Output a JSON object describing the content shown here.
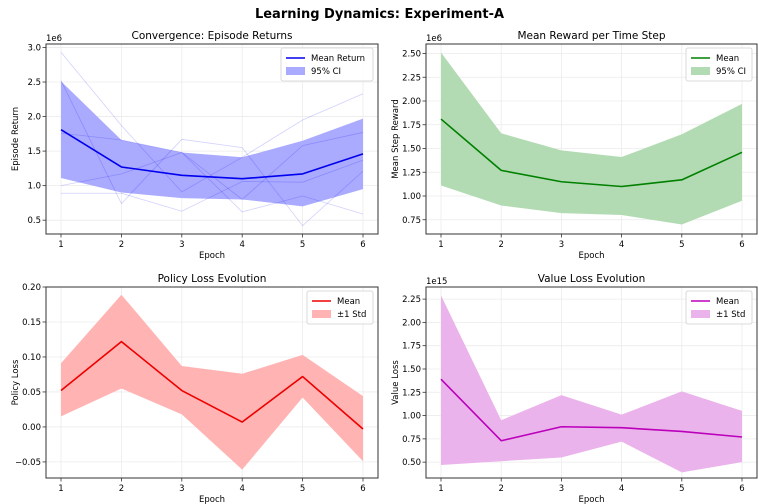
{
  "figure": {
    "title": "Learning Dynamics: Experiment-A"
  },
  "chart_data": [
    {
      "id": "returns",
      "type": "line",
      "title": "Convergence: Episode Returns",
      "xlabel": "Epoch",
      "ylabel": "Episode Return",
      "offset_label": "1e6",
      "x": [
        1,
        2,
        3,
        4,
        5,
        6
      ],
      "xticks": [
        "1",
        "2",
        "3",
        "4",
        "5",
        "6"
      ],
      "ylim": [
        0.3,
        3.05
      ],
      "yticks": [
        0.5,
        1.0,
        1.5,
        2.0,
        2.5,
        3.0
      ],
      "ytick_labels": [
        "0.5",
        "1.0",
        "1.5",
        "2.0",
        "2.5",
        "3.0"
      ],
      "grid": true,
      "legend": {
        "placement": "top-right",
        "entries": [
          {
            "label": "Mean Return",
            "kind": "line"
          },
          {
            "label": "95% CI",
            "kind": "band"
          }
        ]
      },
      "color": "#0000ee",
      "band_color": "#aaaaff",
      "mean": [
        1.81,
        1.27,
        1.15,
        1.1,
        1.17,
        1.46
      ],
      "band_upper": [
        2.51,
        1.66,
        1.48,
        1.41,
        1.65,
        1.97
      ],
      "band_lower": [
        1.11,
        0.9,
        0.82,
        0.8,
        0.7,
        0.95
      ],
      "runs": [
        [
          2.93,
          1.87,
          0.91,
          1.41,
          1.95,
          2.33
        ],
        [
          1.76,
          1.66,
          1.48,
          0.8,
          1.58,
          1.77
        ],
        [
          2.52,
          0.74,
          1.67,
          1.55,
          0.42,
          1.21
        ],
        [
          1.0,
          1.17,
          1.48,
          0.62,
          0.85,
          0.59
        ],
        [
          0.89,
          0.89,
          0.63,
          1.06,
          1.05,
          1.37
        ]
      ]
    },
    {
      "id": "step_reward",
      "type": "line",
      "title": "Mean Reward per Time Step",
      "xlabel": "Epoch",
      "ylabel": "Mean Step Reward",
      "offset_label": "1e6",
      "x": [
        1,
        2,
        3,
        4,
        5,
        6
      ],
      "xticks": [
        "1",
        "2",
        "3",
        "4",
        "5",
        "6"
      ],
      "ylim": [
        0.6,
        2.6
      ],
      "yticks": [
        0.75,
        1.0,
        1.25,
        1.5,
        1.75,
        2.0,
        2.25,
        2.5
      ],
      "ytick_labels": [
        "0.75",
        "1.00",
        "1.25",
        "1.50",
        "1.75",
        "2.00",
        "2.25",
        "2.50"
      ],
      "grid": true,
      "legend": {
        "placement": "top-right",
        "entries": [
          {
            "label": "Mean",
            "kind": "line"
          },
          {
            "label": "95% CI",
            "kind": "band"
          }
        ]
      },
      "color": "#008000",
      "band_color": "#b3dbb3",
      "mean": [
        1.81,
        1.27,
        1.15,
        1.1,
        1.17,
        1.46
      ],
      "band_upper": [
        2.51,
        1.66,
        1.48,
        1.41,
        1.65,
        1.97
      ],
      "band_lower": [
        1.11,
        0.9,
        0.82,
        0.8,
        0.7,
        0.95
      ],
      "runs": []
    },
    {
      "id": "policy_loss",
      "type": "line",
      "title": "Policy Loss Evolution",
      "xlabel": "Epoch",
      "ylabel": "Policy Loss",
      "offset_label": "",
      "x": [
        1,
        2,
        3,
        4,
        5,
        6
      ],
      "xticks": [
        "1",
        "2",
        "3",
        "4",
        "5",
        "6"
      ],
      "ylim": [
        -0.073,
        0.2
      ],
      "yticks": [
        -0.05,
        0.0,
        0.05,
        0.1,
        0.15,
        0.2
      ],
      "ytick_labels": [
        "−0.05",
        "0.00",
        "0.05",
        "0.10",
        "0.15",
        "0.20"
      ],
      "grid": true,
      "legend": {
        "placement": "top-right",
        "entries": [
          {
            "label": "Mean",
            "kind": "line"
          },
          {
            "label": "±1 Std",
            "kind": "band"
          }
        ]
      },
      "color": "#ee0000",
      "band_color": "#ffb3b3",
      "mean": [
        0.052,
        0.122,
        0.052,
        0.007,
        0.072,
        -0.003
      ],
      "band_upper": [
        0.091,
        0.189,
        0.087,
        0.076,
        0.103,
        0.044
      ],
      "band_lower": [
        0.015,
        0.055,
        0.018,
        -0.061,
        0.042,
        -0.049
      ],
      "runs": []
    },
    {
      "id": "value_loss",
      "type": "line",
      "title": "Value Loss Evolution",
      "xlabel": "Epoch",
      "ylabel": "Value Loss",
      "offset_label": "1e15",
      "x": [
        1,
        2,
        3,
        4,
        5,
        6
      ],
      "xticks": [
        "1",
        "2",
        "3",
        "4",
        "5",
        "6"
      ],
      "ylim": [
        0.33,
        2.38
      ],
      "yticks": [
        0.5,
        0.75,
        1.0,
        1.25,
        1.5,
        1.75,
        2.0,
        2.25
      ],
      "ytick_labels": [
        "0.50",
        "0.75",
        "1.00",
        "1.25",
        "1.50",
        "1.75",
        "2.00",
        "2.25"
      ],
      "grid": true,
      "legend": {
        "placement": "top-right",
        "entries": [
          {
            "label": "Mean",
            "kind": "line"
          },
          {
            "label": "±1 Std",
            "kind": "band"
          }
        ]
      },
      "color": "#bb00bb",
      "band_color": "#ebb3eb",
      "mean": [
        1.39,
        0.73,
        0.88,
        0.87,
        0.83,
        0.77
      ],
      "band_upper": [
        2.29,
        0.95,
        1.22,
        1.01,
        1.26,
        1.05
      ],
      "band_lower": [
        0.47,
        0.51,
        0.55,
        0.72,
        0.39,
        0.5
      ],
      "runs": []
    }
  ]
}
